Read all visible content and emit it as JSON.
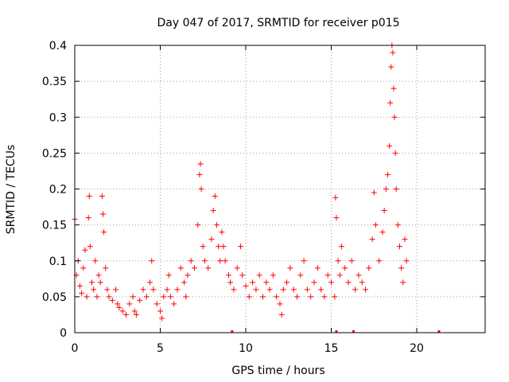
{
  "chart_data": {
    "type": "scatter",
    "title": "Day 047 of 2017, SRMTID for receiver p015",
    "xlabel": "GPS time / hours",
    "ylabel": "SRMTID / TECUs",
    "xlim": [
      0,
      24
    ],
    "ylim": [
      0,
      0.4
    ],
    "grid": true,
    "marker": "+",
    "color": "#ff0000",
    "x_ticks": [
      0,
      5,
      10,
      15,
      20
    ],
    "x_tick_labels": [
      "0",
      "5",
      "10",
      "15",
      "20"
    ],
    "y_ticks": [
      0,
      0.05,
      0.1,
      0.15,
      0.2,
      0.25,
      0.3,
      0.35,
      0.4
    ],
    "y_tick_labels": [
      "0",
      "0.05",
      "0.1",
      "0.15",
      "0.2",
      "0.25",
      "0.3",
      "0.35",
      "0.4"
    ],
    "series": [
      {
        "name": "SRMTID",
        "points": [
          [
            0.0,
            0.158
          ],
          [
            0.1,
            0.08
          ],
          [
            0.2,
            0.1
          ],
          [
            0.3,
            0.065
          ],
          [
            0.4,
            0.055
          ],
          [
            0.5,
            0.09
          ],
          [
            0.6,
            0.115
          ],
          [
            0.7,
            0.05
          ],
          [
            0.8,
            0.16
          ],
          [
            0.85,
            0.19
          ],
          [
            0.9,
            0.12
          ],
          [
            1.0,
            0.07
          ],
          [
            1.1,
            0.06
          ],
          [
            1.2,
            0.1
          ],
          [
            1.3,
            0.05
          ],
          [
            1.4,
            0.08
          ],
          [
            1.5,
            0.07
          ],
          [
            1.6,
            0.19
          ],
          [
            1.65,
            0.165
          ],
          [
            1.7,
            0.14
          ],
          [
            1.8,
            0.09
          ],
          [
            1.9,
            0.06
          ],
          [
            2.0,
            0.05
          ],
          [
            2.2,
            0.045
          ],
          [
            2.4,
            0.06
          ],
          [
            2.5,
            0.04
          ],
          [
            2.6,
            0.035
          ],
          [
            2.8,
            0.03
          ],
          [
            3.0,
            0.025
          ],
          [
            3.2,
            0.04
          ],
          [
            3.4,
            0.05
          ],
          [
            3.5,
            0.03
          ],
          [
            3.6,
            0.025
          ],
          [
            3.8,
            0.045
          ],
          [
            4.0,
            0.06
          ],
          [
            4.2,
            0.05
          ],
          [
            4.4,
            0.07
          ],
          [
            4.5,
            0.1
          ],
          [
            4.6,
            0.06
          ],
          [
            4.8,
            0.04
          ],
          [
            5.0,
            0.03
          ],
          [
            5.1,
            0.02
          ],
          [
            5.2,
            0.05
          ],
          [
            5.4,
            0.06
          ],
          [
            5.5,
            0.08
          ],
          [
            5.6,
            0.05
          ],
          [
            5.8,
            0.04
          ],
          [
            6.0,
            0.06
          ],
          [
            6.2,
            0.09
          ],
          [
            6.4,
            0.07
          ],
          [
            6.5,
            0.05
          ],
          [
            6.6,
            0.08
          ],
          [
            6.8,
            0.1
          ],
          [
            7.0,
            0.09
          ],
          [
            7.2,
            0.15
          ],
          [
            7.3,
            0.22
          ],
          [
            7.35,
            0.235
          ],
          [
            7.4,
            0.2
          ],
          [
            7.5,
            0.12
          ],
          [
            7.6,
            0.1
          ],
          [
            7.8,
            0.09
          ],
          [
            8.0,
            0.13
          ],
          [
            8.1,
            0.17
          ],
          [
            8.2,
            0.19
          ],
          [
            8.3,
            0.15
          ],
          [
            8.4,
            0.12
          ],
          [
            8.5,
            0.1
          ],
          [
            8.6,
            0.14
          ],
          [
            8.7,
            0.12
          ],
          [
            8.8,
            0.1
          ],
          [
            9.0,
            0.08
          ],
          [
            9.1,
            0.07
          ],
          [
            9.3,
            0.06
          ],
          [
            9.5,
            0.09
          ],
          [
            9.7,
            0.12
          ],
          [
            9.8,
            0.08
          ],
          [
            10.0,
            0.065
          ],
          [
            10.2,
            0.05
          ],
          [
            10.4,
            0.07
          ],
          [
            10.6,
            0.06
          ],
          [
            10.8,
            0.08
          ],
          [
            11.0,
            0.05
          ],
          [
            11.2,
            0.07
          ],
          [
            11.4,
            0.06
          ],
          [
            11.6,
            0.08
          ],
          [
            11.8,
            0.05
          ],
          [
            12.0,
            0.04
          ],
          [
            12.1,
            0.025
          ],
          [
            12.2,
            0.06
          ],
          [
            12.4,
            0.07
          ],
          [
            12.6,
            0.09
          ],
          [
            12.8,
            0.06
          ],
          [
            13.0,
            0.05
          ],
          [
            13.2,
            0.08
          ],
          [
            13.4,
            0.1
          ],
          [
            13.6,
            0.06
          ],
          [
            13.8,
            0.05
          ],
          [
            14.0,
            0.07
          ],
          [
            14.2,
            0.09
          ],
          [
            14.4,
            0.06
          ],
          [
            14.6,
            0.05
          ],
          [
            14.8,
            0.08
          ],
          [
            15.0,
            0.07
          ],
          [
            15.2,
            0.05
          ],
          [
            15.25,
            0.188
          ],
          [
            15.3,
            0.16
          ],
          [
            15.4,
            0.1
          ],
          [
            15.5,
            0.08
          ],
          [
            15.6,
            0.12
          ],
          [
            15.8,
            0.09
          ],
          [
            16.0,
            0.07
          ],
          [
            16.2,
            0.1
          ],
          [
            16.4,
            0.06
          ],
          [
            16.6,
            0.08
          ],
          [
            16.8,
            0.07
          ],
          [
            17.0,
            0.06
          ],
          [
            17.2,
            0.09
          ],
          [
            17.4,
            0.13
          ],
          [
            17.5,
            0.195
          ],
          [
            17.6,
            0.15
          ],
          [
            17.8,
            0.1
          ],
          [
            18.0,
            0.14
          ],
          [
            18.1,
            0.17
          ],
          [
            18.2,
            0.2
          ],
          [
            18.3,
            0.22
          ],
          [
            18.4,
            0.26
          ],
          [
            18.45,
            0.32
          ],
          [
            18.5,
            0.37
          ],
          [
            18.55,
            0.4
          ],
          [
            18.6,
            0.39
          ],
          [
            18.65,
            0.34
          ],
          [
            18.7,
            0.3
          ],
          [
            18.75,
            0.25
          ],
          [
            18.8,
            0.2
          ],
          [
            18.9,
            0.15
          ],
          [
            19.0,
            0.12
          ],
          [
            19.1,
            0.09
          ],
          [
            19.2,
            0.07
          ],
          [
            19.3,
            0.13
          ],
          [
            19.4,
            0.1
          ]
        ]
      }
    ],
    "zero_markers_x": [
      9.2,
      15.3,
      16.3,
      21.3
    ]
  }
}
